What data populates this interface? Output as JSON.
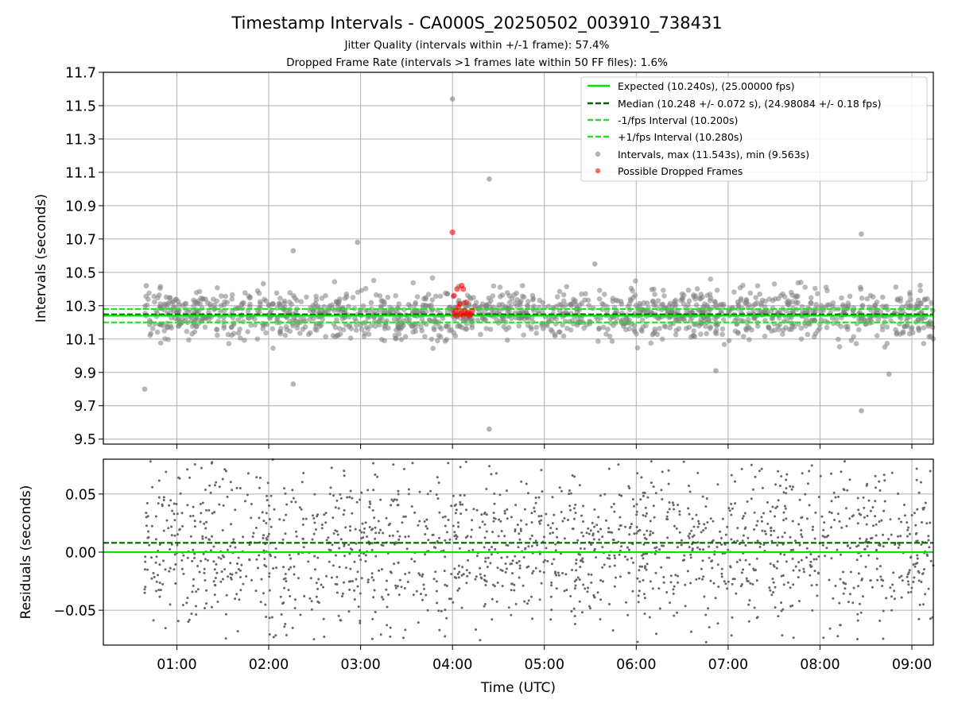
{
  "chart_data": [
    {
      "type": "scatter",
      "title": "Timestamp Intervals - CA000S_20250502_003910_738431",
      "subtitle_1": "Jitter Quality (intervals within +/-1 frame): 57.4%",
      "subtitle_2": "Dropped Frame Rate (intervals >1 frames late within 50 FF files): 1.6%",
      "ylabel": "Intervals (seconds)",
      "ylim": [
        9.47,
        11.7
      ],
      "xlim": [
        "00:12",
        "09:14"
      ],
      "yticks": [
        "9.5",
        "9.7",
        "9.9",
        "10.1",
        "10.3",
        "10.5",
        "10.7",
        "10.9",
        "11.1",
        "11.3",
        "11.5",
        "11.7"
      ],
      "grid": true,
      "legend_position": "top-right",
      "reference_lines": [
        {
          "name": "Expected (10.240s), (25.00000 fps)",
          "value": 10.24,
          "style": "solid",
          "color": "#00e600"
        },
        {
          "name": "Median (10.248 +/- 0.072 s), (24.98084 +/- 0.18 fps)",
          "value": 10.248,
          "style": "dashed",
          "color": "#006400"
        },
        {
          "name": "-1/fps Interval (10.200s)",
          "value": 10.2,
          "style": "dashed",
          "color": "#26e226"
        },
        {
          "name": "+1/fps Interval (10.280s)",
          "value": 10.28,
          "style": "dashed",
          "color": "#26e226"
        }
      ],
      "series": [
        {
          "name": "Intervals, max (11.543s), min (9.563s)",
          "color": "#808080",
          "notable_points": [
            {
              "x": "00:39",
              "y": 9.8
            },
            {
              "x": "00:40",
              "y": 10.42
            },
            {
              "x": "02:16",
              "y": 10.63
            },
            {
              "x": "02:16",
              "y": 9.83
            },
            {
              "x": "02:58",
              "y": 10.68
            },
            {
              "x": "04:00",
              "y": 11.54
            },
            {
              "x": "04:24",
              "y": 11.06
            },
            {
              "x": "04:24",
              "y": 9.56
            },
            {
              "x": "05:33",
              "y": 10.55
            },
            {
              "x": "06:52",
              "y": 9.91
            },
            {
              "x": "08:27",
              "y": 10.73
            },
            {
              "x": "08:27",
              "y": 9.67
            },
            {
              "x": "08:45",
              "y": 9.89
            }
          ],
          "bulk": {
            "x_range": [
              "00:39",
              "09:14"
            ],
            "y_center": 10.248,
            "y_spread": 0.072
          }
        },
        {
          "name": "Possible Dropped Frames",
          "color": "#ff0000",
          "points": [
            {
              "x": "04:00",
              "y": 10.74
            },
            {
              "x": "04:01",
              "y": 10.25
            },
            {
              "x": "04:01",
              "y": 10.36
            },
            {
              "x": "04:02",
              "y": 10.27
            },
            {
              "x": "04:03",
              "y": 10.4
            },
            {
              "x": "04:03",
              "y": 10.24
            },
            {
              "x": "04:04",
              "y": 10.29
            },
            {
              "x": "04:05",
              "y": 10.25
            },
            {
              "x": "04:05",
              "y": 10.31
            },
            {
              "x": "04:06",
              "y": 10.42
            },
            {
              "x": "04:06",
              "y": 10.26
            },
            {
              "x": "04:07",
              "y": 10.4
            },
            {
              "x": "04:07",
              "y": 10.24
            },
            {
              "x": "04:08",
              "y": 10.27
            },
            {
              "x": "04:09",
              "y": 10.25
            },
            {
              "x": "04:09",
              "y": 10.32
            },
            {
              "x": "04:10",
              "y": 10.26
            },
            {
              "x": "04:11",
              "y": 10.24
            },
            {
              "x": "04:12",
              "y": 10.25
            },
            {
              "x": "04:13",
              "y": 10.27
            }
          ]
        }
      ]
    },
    {
      "type": "scatter",
      "xlabel": "Time (UTC)",
      "ylabel": "Residuals (seconds)",
      "ylim": [
        -0.08,
        0.08
      ],
      "xlim": [
        "00:12",
        "09:14"
      ],
      "yticks": [
        "−0.05",
        "0.00",
        "0.05"
      ],
      "xticks": [
        "01:00",
        "02:00",
        "03:00",
        "04:00",
        "05:00",
        "06:00",
        "07:00",
        "08:00",
        "09:00"
      ],
      "grid": true,
      "reference_lines": [
        {
          "value": 0.0,
          "style": "solid",
          "color": "#00e600"
        },
        {
          "value": 0.008,
          "style": "dashed",
          "color": "#006400"
        }
      ],
      "series": [
        {
          "color": "#666666",
          "bulk": {
            "x_range": [
              "00:39",
              "09:14"
            ],
            "y_range": [
              -0.08,
              0.08
            ]
          }
        }
      ]
    }
  ]
}
